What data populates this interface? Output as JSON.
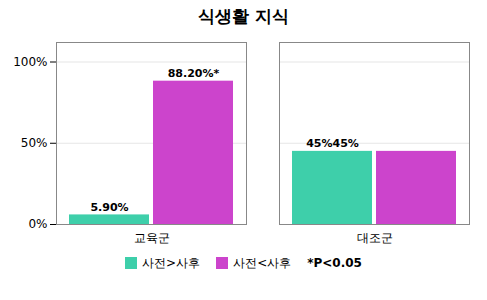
{
  "chart_data": {
    "type": "bar",
    "title": "식생활 지식",
    "categories": [
      "교육군",
      "대조군"
    ],
    "series": [
      {
        "name": "사전>사후",
        "color": "#3ECFAA",
        "values": [
          5.9,
          45.0
        ],
        "value_labels": [
          "5.90%",
          "45%45%"
        ]
      },
      {
        "name": "사전<사후",
        "color": "#CC44CC",
        "values": [
          88.2,
          45.0
        ],
        "value_labels": [
          "88.20%*",
          null
        ]
      }
    ],
    "ylim": [
      0,
      112
    ],
    "yticks": [
      {
        "value": 0,
        "label": "0%"
      },
      {
        "value": 50,
        "label": "50%"
      },
      {
        "value": 100,
        "label": "100%"
      }
    ],
    "grid": true,
    "data_labels": true,
    "annotation": "*P<0.05"
  }
}
